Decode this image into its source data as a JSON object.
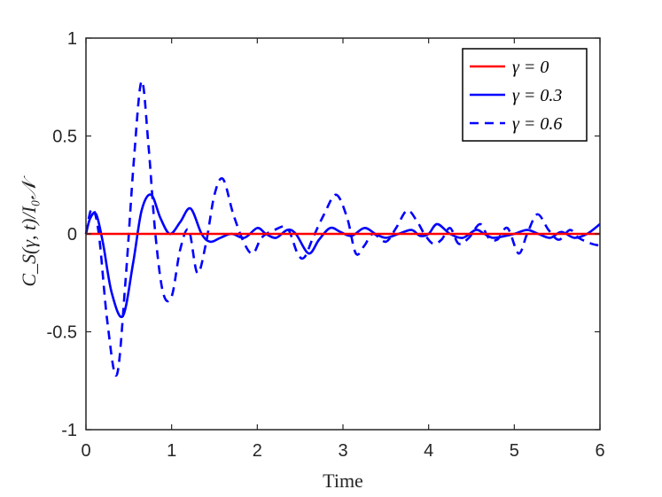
{
  "chart_data": {
    "type": "line",
    "xlabel": "Time",
    "ylabel": "C_S(γ, t)/I₀𝒩",
    "xlim": [
      0,
      6
    ],
    "ylim": [
      -1,
      1
    ],
    "x_ticks": [
      "0",
      "1",
      "2",
      "3",
      "4",
      "5",
      "6"
    ],
    "y_ticks": [
      "-1",
      "-0.5",
      "0",
      "0.5",
      "1"
    ],
    "grid": false,
    "legend_position": "top-right",
    "series": [
      {
        "name": "γ = 0",
        "color": "#ff0000",
        "style": "solid",
        "x": [
          0,
          6
        ],
        "y": [
          0,
          0
        ]
      },
      {
        "name": "γ = 0.3",
        "color": "#0000ff",
        "style": "solid",
        "x": [
          0.0,
          0.05,
          0.12,
          0.2,
          0.3,
          0.43,
          0.55,
          0.65,
          0.76,
          0.87,
          0.98,
          1.1,
          1.22,
          1.35,
          1.45,
          1.57,
          1.7,
          1.85,
          2.0,
          2.1,
          2.22,
          2.35,
          2.45,
          2.6,
          2.72,
          2.85,
          2.97,
          3.1,
          3.25,
          3.38,
          3.5,
          3.65,
          3.8,
          3.9,
          4.0,
          4.1,
          4.25,
          4.4,
          4.55,
          4.65,
          4.75,
          4.9,
          5.0,
          5.15,
          5.28,
          5.42,
          5.55,
          5.7,
          5.85,
          6.0
        ],
        "y": [
          0.0,
          0.08,
          0.1,
          -0.05,
          -0.3,
          -0.42,
          -0.15,
          0.12,
          0.2,
          0.08,
          0.0,
          0.06,
          0.13,
          0.0,
          -0.04,
          -0.02,
          0.0,
          -0.02,
          0.03,
          0.0,
          -0.02,
          0.02,
          0.0,
          -0.1,
          -0.03,
          0.03,
          0.01,
          -0.01,
          0.03,
          0.0,
          -0.02,
          0.0,
          0.02,
          -0.01,
          0.0,
          0.05,
          0.0,
          -0.02,
          0.02,
          0.0,
          -0.02,
          -0.01,
          0.0,
          0.02,
          0.0,
          -0.02,
          0.01,
          -0.02,
          0.0,
          0.05
        ]
      },
      {
        "name": "γ = 0.6",
        "color": "#0000ff",
        "style": "dashed",
        "x": [
          0.0,
          0.07,
          0.15,
          0.25,
          0.36,
          0.46,
          0.56,
          0.65,
          0.73,
          0.81,
          0.9,
          1.0,
          1.1,
          1.2,
          1.3,
          1.4,
          1.5,
          1.6,
          1.72,
          1.85,
          1.95,
          2.05,
          2.2,
          2.35,
          2.47,
          2.55,
          2.65,
          2.78,
          2.92,
          3.05,
          3.15,
          3.25,
          3.35,
          3.5,
          3.62,
          3.75,
          3.87,
          3.95,
          4.05,
          4.15,
          4.25,
          4.35,
          4.47,
          4.6,
          4.7,
          4.8,
          4.92,
          5.05,
          5.15,
          5.27,
          5.4,
          5.52,
          5.65,
          5.75,
          5.9,
          6.0
        ],
        "y": [
          0.0,
          0.13,
          0.0,
          -0.45,
          -0.72,
          -0.25,
          0.38,
          0.78,
          0.45,
          0.0,
          -0.3,
          -0.32,
          -0.08,
          0.02,
          -0.2,
          -0.05,
          0.2,
          0.28,
          0.1,
          -0.05,
          -0.1,
          -0.02,
          0.02,
          0.03,
          -0.1,
          -0.12,
          -0.02,
          0.1,
          0.2,
          0.08,
          -0.1,
          -0.06,
          0.0,
          -0.04,
          0.03,
          0.12,
          0.06,
          0.0,
          -0.05,
          -0.03,
          0.03,
          -0.05,
          -0.02,
          0.05,
          -0.02,
          -0.03,
          0.03,
          -0.1,
          0.0,
          0.1,
          0.02,
          -0.03,
          0.02,
          -0.02,
          -0.05,
          -0.06
        ]
      }
    ]
  }
}
